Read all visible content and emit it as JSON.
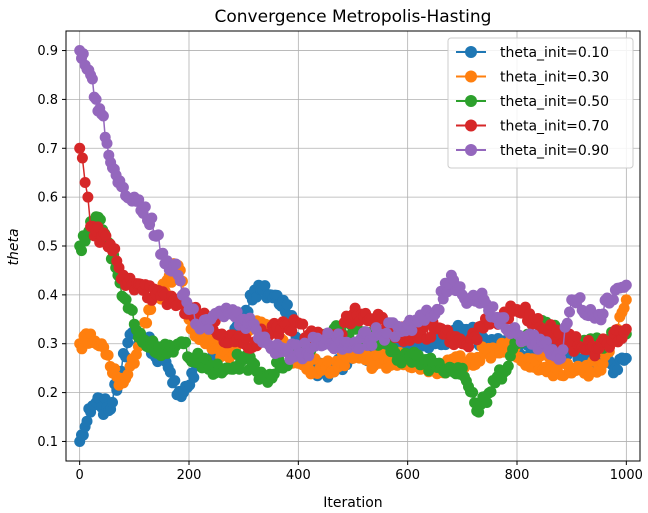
{
  "chart_data": {
    "type": "line",
    "title": "Convergence Metropolis-Hasting",
    "xlabel": "Iteration",
    "ylabel": "theta",
    "xlim": [
      -25,
      1025
    ],
    "ylim": [
      0.06,
      0.94
    ],
    "xticks": [
      0,
      200,
      400,
      600,
      800,
      1000
    ],
    "yticks": [
      0.1,
      0.2,
      0.3,
      0.4,
      0.5,
      0.6,
      0.7,
      0.8,
      0.9
    ],
    "grid": true,
    "legend_position": "top-right",
    "marker": "circle",
    "series": [
      {
        "name": "theta_init=0.10",
        "color": "#1f77b4",
        "x": [
          0,
          10,
          20,
          30,
          40,
          50,
          60,
          80,
          100,
          120,
          150,
          170,
          190,
          220,
          260,
          300,
          320,
          350,
          380,
          400,
          420,
          450,
          500,
          550,
          600,
          650,
          700,
          750,
          800,
          850,
          900,
          950,
          980,
          1000
        ],
        "y": [
          0.1,
          0.13,
          0.16,
          0.18,
          0.17,
          0.17,
          0.18,
          0.28,
          0.32,
          0.31,
          0.27,
          0.22,
          0.2,
          0.26,
          0.28,
          0.36,
          0.41,
          0.4,
          0.38,
          0.3,
          0.26,
          0.24,
          0.28,
          0.27,
          0.31,
          0.3,
          0.33,
          0.3,
          0.29,
          0.3,
          0.29,
          0.27,
          0.25,
          0.27
        ]
      },
      {
        "name": "theta_init=0.30",
        "color": "#ff7f0e",
        "x": [
          0,
          20,
          40,
          60,
          80,
          100,
          130,
          160,
          180,
          200,
          230,
          270,
          300,
          340,
          400,
          450,
          500,
          550,
          600,
          650,
          700,
          740,
          780,
          820,
          870,
          900,
          950,
          980,
          1000
        ],
        "y": [
          0.3,
          0.32,
          0.3,
          0.24,
          0.22,
          0.26,
          0.37,
          0.43,
          0.46,
          0.35,
          0.3,
          0.28,
          0.32,
          0.34,
          0.26,
          0.25,
          0.27,
          0.26,
          0.27,
          0.25,
          0.26,
          0.28,
          0.3,
          0.27,
          0.25,
          0.24,
          0.25,
          0.31,
          0.39
        ]
      },
      {
        "name": "theta_init=0.50",
        "color": "#2ca02c",
        "x": [
          0,
          10,
          20,
          30,
          50,
          70,
          100,
          130,
          160,
          190,
          220,
          260,
          300,
          340,
          400,
          450,
          500,
          550,
          600,
          650,
          700,
          730,
          760,
          800,
          850,
          900,
          950,
          1000
        ],
        "y": [
          0.5,
          0.51,
          0.55,
          0.56,
          0.51,
          0.44,
          0.34,
          0.3,
          0.28,
          0.3,
          0.26,
          0.24,
          0.27,
          0.23,
          0.29,
          0.32,
          0.33,
          0.3,
          0.27,
          0.26,
          0.25,
          0.16,
          0.22,
          0.3,
          0.34,
          0.31,
          0.3,
          0.32
        ]
      },
      {
        "name": "theta_init=0.70",
        "color": "#d62728",
        "x": [
          0,
          5,
          10,
          15,
          20,
          30,
          40,
          60,
          80,
          100,
          140,
          180,
          220,
          260,
          300,
          340,
          380,
          420,
          460,
          500,
          550,
          600,
          650,
          700,
          750,
          800,
          850,
          900,
          950,
          1000
        ],
        "y": [
          0.7,
          0.68,
          0.63,
          0.6,
          0.54,
          0.53,
          0.52,
          0.49,
          0.44,
          0.41,
          0.4,
          0.38,
          0.36,
          0.32,
          0.3,
          0.32,
          0.34,
          0.32,
          0.3,
          0.36,
          0.35,
          0.31,
          0.33,
          0.3,
          0.34,
          0.37,
          0.33,
          0.3,
          0.29,
          0.33
        ]
      },
      {
        "name": "theta_init=0.90",
        "color": "#9467bd",
        "x": [
          0,
          10,
          20,
          30,
          40,
          50,
          60,
          70,
          80,
          100,
          120,
          140,
          160,
          180,
          200,
          220,
          260,
          300,
          350,
          400,
          450,
          500,
          550,
          600,
          650,
          680,
          700,
          740,
          780,
          800,
          850,
          880,
          900,
          950,
          980,
          1000
        ],
        "y": [
          0.9,
          0.87,
          0.85,
          0.8,
          0.77,
          0.71,
          0.66,
          0.63,
          0.62,
          0.6,
          0.58,
          0.52,
          0.47,
          0.44,
          0.37,
          0.33,
          0.36,
          0.35,
          0.29,
          0.28,
          0.31,
          0.3,
          0.32,
          0.34,
          0.36,
          0.44,
          0.4,
          0.39,
          0.33,
          0.32,
          0.3,
          0.27,
          0.39,
          0.36,
          0.41,
          0.42
        ]
      }
    ]
  }
}
